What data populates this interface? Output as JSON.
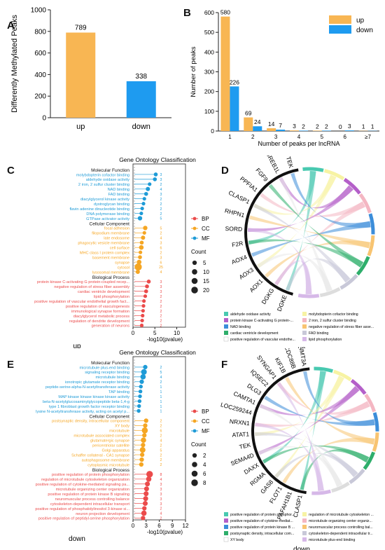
{
  "panels": {
    "a": "A",
    "b": "B",
    "c": "C",
    "d": "D",
    "e": "E",
    "f": "F"
  },
  "chart_data": [
    {
      "type": "bar",
      "id": "A",
      "categories": [
        "up",
        "down"
      ],
      "values": [
        789,
        338
      ],
      "ylabel": "Differently Methylated Peaks",
      "ylim": [
        0,
        1000
      ],
      "yticks": [
        0,
        200,
        400,
        600,
        800,
        1000
      ],
      "colors": [
        "#F8B653",
        "#1E9BF0"
      ]
    },
    {
      "type": "bar",
      "id": "B",
      "categories": [
        "1",
        "2",
        "3",
        "4",
        "5",
        "6",
        "≥7"
      ],
      "series": [
        {
          "name": "up",
          "values": [
            580,
            69,
            14,
            3,
            2,
            0,
            1
          ],
          "color": "#F8B653"
        },
        {
          "name": "down",
          "values": [
            226,
            24,
            7,
            2,
            2,
            3,
            1
          ],
          "color": "#1E9BF0"
        }
      ],
      "xlabel": "Number of peaks per lncRNA",
      "ylabel": "Number of peaks",
      "ylim": [
        0,
        600
      ],
      "yticks": [
        0,
        100,
        200,
        300,
        400,
        500,
        600
      ],
      "legend": "top-right"
    },
    {
      "type": "lollipop",
      "id": "C",
      "title": "Gene Ontology Classification",
      "xlabel": "-log10(pvalue)",
      "xticks": [
        0,
        5,
        10
      ],
      "xlim": [
        0,
        12
      ],
      "bottom_label": "up",
      "groups": [
        {
          "header": "Molecular Function",
          "category": "MF",
          "color": "#1E9BD7",
          "terms": [
            "molybdopterin cofactor binding",
            "aldehyde oxidase activity",
            "2 iron, 2 sulfur cluster binding",
            "NAD binding",
            "FAD binding",
            "diacylglycerol kinase activity",
            "dystroglycan binding",
            "flavin adenine dinucleotide binding",
            "DNA polymerase binding",
            "GTPase activator activity"
          ],
          "values": [
            5.2,
            5.0,
            3.8,
            3.4,
            3.0,
            2.6,
            2.4,
            2.1,
            1.9,
            1.6
          ],
          "counts": [
            "3",
            "3",
            "2",
            "4",
            "3",
            "2",
            "2",
            "2",
            "2",
            "5"
          ]
        },
        {
          "header": "Cellular Component",
          "category": "CC",
          "color": "#F5A623",
          "terms": [
            "focal adhesion",
            "filopodium membrane",
            "late endosome",
            "phagocytic vesicle membrane",
            "cell surface",
            "MHC class I protein complex",
            "basement membrane",
            "synapse",
            "cytosol",
            "lysosomal membrane"
          ],
          "values": [
            2.8,
            2.6,
            2.3,
            2.0,
            1.9,
            1.7,
            1.6,
            1.4,
            1.2,
            1.1
          ],
          "counts": [
            "5",
            "2",
            "4",
            "3",
            "6",
            "2",
            "3",
            "6",
            "25",
            "4"
          ]
        },
        {
          "header": "Biological Process",
          "category": "BP",
          "color": "#EB4B4B",
          "terms": [
            "protein kinase C-activating G protein-coupled recep...",
            "negative regulation of stress fiber assembly",
            "cardiac ventricle development",
            "lipid phosphorylation",
            "positive regulation of vascular endothelial growth fact...",
            "positive regulation of vasculogenesis",
            "immunological synapse formation",
            "diacylglycerol metabolic process",
            "regulation of dendrite development",
            "generation of neurons"
          ],
          "values": [
            3.6,
            3.2,
            3.0,
            2.8,
            2.5,
            2.4,
            2.3,
            2.2,
            2.1,
            2.0
          ],
          "counts": [
            "3",
            "3",
            "3",
            "2",
            "2",
            "2",
            "2",
            "2",
            "2",
            "2"
          ]
        }
      ],
      "legend_categories": [
        "BP",
        "CC",
        "MF"
      ],
      "count_title": "Count",
      "count_sizes": [
        "5",
        "10",
        "15",
        "20"
      ]
    },
    {
      "type": "chord",
      "id": "D",
      "genes": [
        "DGKE",
        "DGKG",
        "AOX1",
        "AOX3",
        "AOX4",
        "F2R",
        "SORD",
        "RHPN1",
        "CLASP1",
        "PPFIA1",
        "FGF9",
        "GREB1L",
        "TEK"
      ],
      "legend": [
        {
          "label": "aldehyde oxidase activity",
          "color": "#48C9B0"
        },
        {
          "label": "molybdopterin cofactor binding",
          "color": "#F7F3A3"
        },
        {
          "label": "protein kinase C-activating G protein-...",
          "color": "#B45FC9"
        },
        {
          "label": "2 iron, 2 sulfur cluster binding",
          "color": "#F4B6C2"
        },
        {
          "label": "NAD binding",
          "color": "#3C8DD9"
        },
        {
          "label": "negative regulation of stress fiber asse...",
          "color": "#F8C471"
        },
        {
          "label": "cardiac ventricle development",
          "color": "#2EAE6B"
        },
        {
          "label": "FAD binding",
          "color": "#C8C8D8"
        },
        {
          "label": "positive regulation of vascular endothe...",
          "color": "#FFFFFF"
        },
        {
          "label": "lipid phosphorylation",
          "color": "#D6B8E8"
        }
      ],
      "bottom_label": "up"
    },
    {
      "type": "lollipop",
      "id": "E",
      "title": "Gene Ontology Classification",
      "xlabel": "-log10(pvalue)",
      "xticks": [
        0,
        3,
        6,
        9,
        12
      ],
      "xlim": [
        0,
        12
      ],
      "bottom_label": "down",
      "groups": [
        {
          "header": "Molecular Function",
          "category": "MF",
          "color": "#1E9BD7",
          "terms": [
            "microtubule plus-end binding",
            "signaling receptor binding",
            "microtubule binding",
            "ionotropic glutamate receptor binding",
            "peptide-serine-alpha-N-acetyltransferase activity",
            "TAP binding",
            "MAP kinase kinase kinase kinase activity",
            "beta-N-acetylglucosaminylglycopeptide beta-1,4-g",
            "type 1 fibroblast growth factor receptor binding",
            "lysine N-acetyltransferase activity, acting on acetyl p..."
          ],
          "values": [
            2.8,
            2.5,
            2.3,
            2.0,
            1.8,
            1.7,
            1.6,
            1.5,
            1.4,
            1.3
          ],
          "counts": [
            "2",
            "5",
            "4",
            "2",
            "1",
            "1",
            "1",
            "1",
            "1",
            "1"
          ]
        },
        {
          "header": "Cellular Component",
          "category": "CC",
          "color": "#F5A623",
          "terms": [
            "postsynaptic density, intracellular component",
            "XY body",
            "microtubule",
            "microtubule associated complex",
            "glutamatergic synapse",
            "pericentriolar satellite",
            "Golgi apparatus",
            "Schaffer collateral - CA1 synapse",
            "autophagosome membrane",
            "cytoplasmic microtubule"
          ],
          "values": [
            3.0,
            2.8,
            2.7,
            2.6,
            2.4,
            2.3,
            2.2,
            2.1,
            2.0,
            1.9
          ],
          "counts": [
            "2",
            "2",
            "6",
            "2",
            "4",
            "2",
            "5",
            "2",
            "2",
            "2"
          ]
        },
        {
          "header": "Biological Process",
          "category": "BP",
          "color": "#EB4B4B",
          "terms": [
            "positive regulation of protein phosphorylation",
            "regulation of microtubule cytoskeleton organization",
            "positive regulation of cytokine-mediated signaling pa...",
            "microtubule organizing center organization",
            "positive regulation of protein kinase B signaling",
            "neuromuscular process controlling balance",
            "cytoskeleton-dependent intracellular transport",
            "positive regulation of phosphatidylinositol 3-kinase si...",
            "neuron projection development",
            "positive regulation of peptidyl-serine phosphorylation"
          ],
          "values": [
            3.8,
            3.6,
            3.3,
            3.1,
            3.0,
            2.9,
            2.8,
            2.6,
            2.5,
            2.3
          ],
          "counts": [
            "8",
            "4",
            "3",
            "3",
            "3",
            "3",
            "3",
            "2",
            "4",
            "2"
          ]
        }
      ],
      "legend_categories": [
        "BP",
        "CC",
        "MF"
      ],
      "count_title": "Count",
      "count_sizes": [
        "2",
        "4",
        "6",
        "8"
      ]
    },
    {
      "type": "chord",
      "id": "F",
      "genes": [
        "CLASP1",
        "PAFAH1B1",
        "FLOT1",
        "GAS8",
        "RGMA",
        "DAXX",
        "SEMA4D",
        "TEK",
        "ATAT1",
        "NRXN1",
        "LOC259244",
        "CAMTA1",
        "DLG3",
        "IQSEC2",
        "SYNGAP1",
        "KIF1B",
        "CCDC88B",
        "DNMT3A"
      ],
      "legend": [
        {
          "label": "positive regulation of protein phosphor...",
          "color": "#48C9B0"
        },
        {
          "label": "regulation of microtubule cytoskeleton ...",
          "color": "#F7F3A3"
        },
        {
          "label": "positive regulation of cytokine-mediat...",
          "color": "#B45FC9"
        },
        {
          "label": "microtubule organizing center organiz...",
          "color": "#F4B6C2"
        },
        {
          "label": "positive regulation of protein kinase B ...",
          "color": "#3C8DD9"
        },
        {
          "label": "neuromuscular process controlling bal...",
          "color": "#F8C471"
        },
        {
          "label": "postsynaptic density, intracellular com...",
          "color": "#2EAE6B"
        },
        {
          "label": "cytoskeleton-dependent intracellular tr...",
          "color": "#C8C8D8"
        },
        {
          "label": "XY body",
          "color": "#FFFFFF"
        },
        {
          "label": "microtubule plus-end binding",
          "color": "#D6B8E8"
        }
      ],
      "bottom_label": "down"
    }
  ]
}
